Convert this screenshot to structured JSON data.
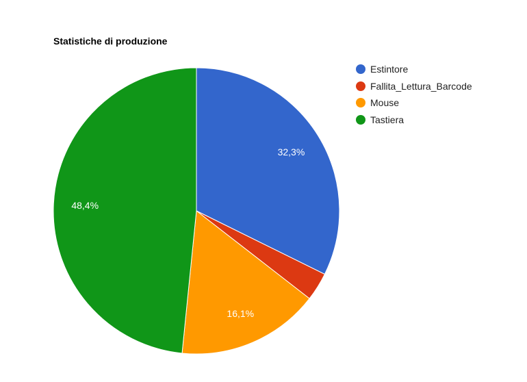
{
  "chart_data": {
    "type": "pie",
    "title": "Statistiche di produzione",
    "series": [
      {
        "name": "Estintore",
        "value": 32.3,
        "label": "32,3%",
        "color": "#3366cc"
      },
      {
        "name": "Fallita_Lettura_Barcode",
        "value": 3.2,
        "label": "",
        "color": "#dc3912"
      },
      {
        "name": "Mouse",
        "value": 16.1,
        "label": "16,1%",
        "color": "#ff9900"
      },
      {
        "name": "Tastiera",
        "value": 48.4,
        "label": "48,4%",
        "color": "#109618"
      }
    ],
    "legend_position": "right"
  }
}
